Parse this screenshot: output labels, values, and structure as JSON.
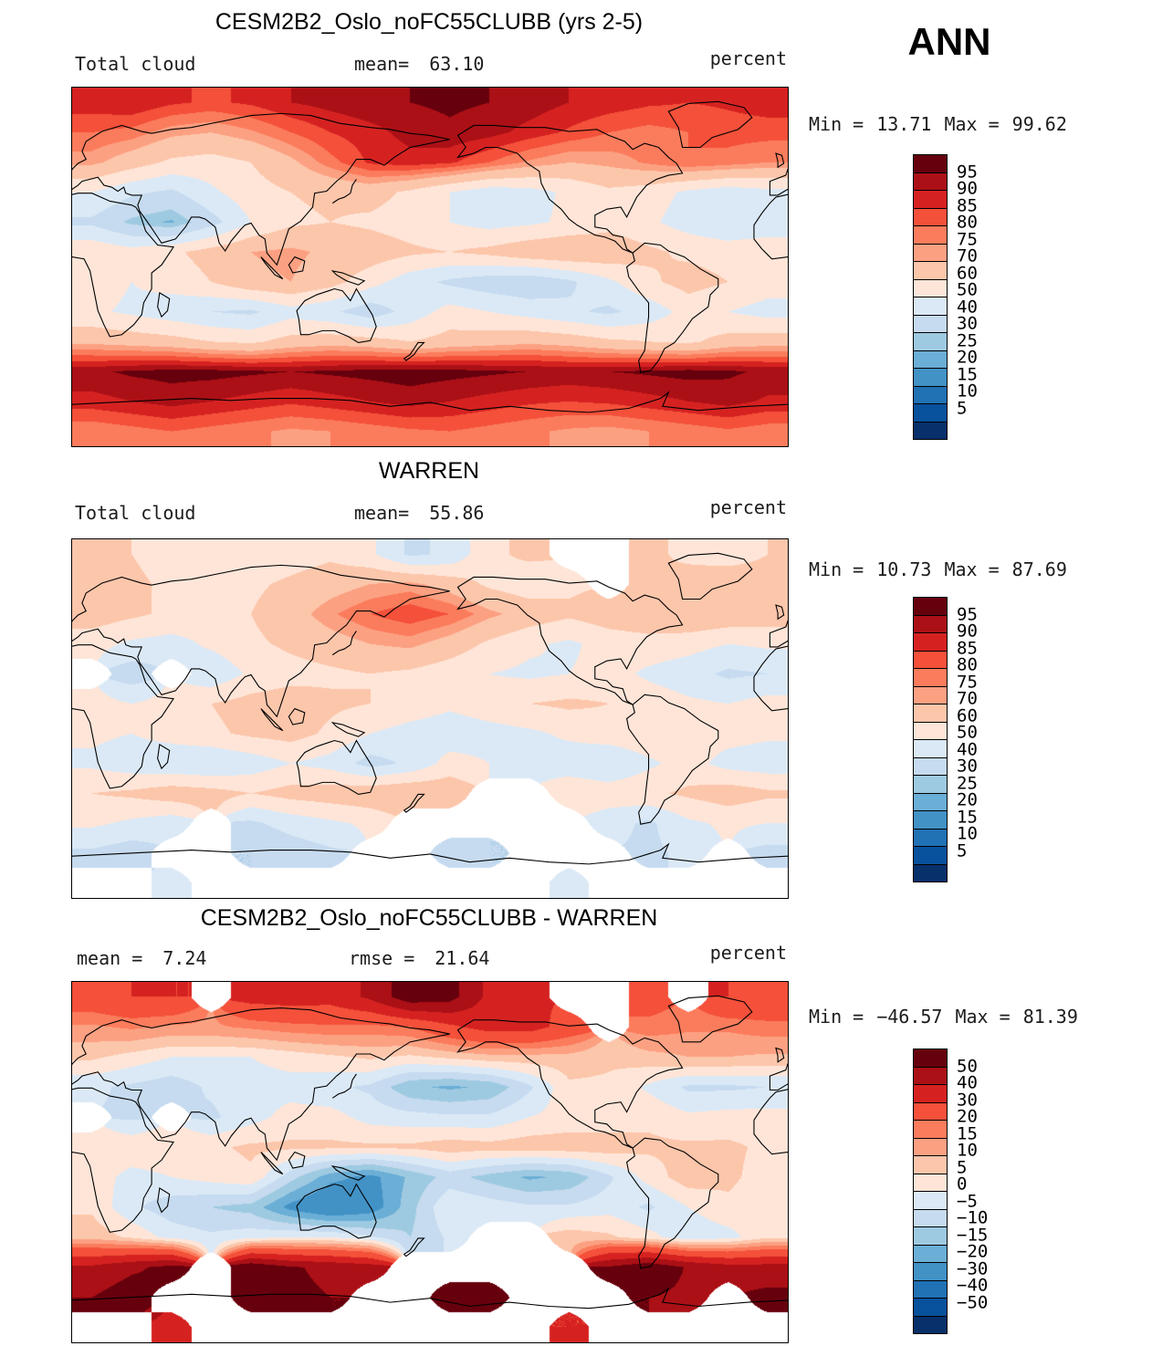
{
  "season_label": "ANN",
  "chart_data": [
    {
      "type": "heatmap",
      "title": "CESM2B2_Oslo_noFC55CLUBB (yrs 2-5)",
      "field_label": "Total cloud",
      "mean_label": "mean=",
      "mean_value": "63.10",
      "units": "percent",
      "min_label": "Min =",
      "min_value": "13.71",
      "max_label": "Max =",
      "max_value": "99.62",
      "stats": {
        "mean": 63.1,
        "min": 13.71,
        "max": 99.62
      },
      "levels": [
        5,
        10,
        15,
        20,
        25,
        30,
        40,
        50,
        60,
        70,
        75,
        80,
        85,
        90,
        95
      ],
      "colorbar_labels": [
        "95",
        "90",
        "85",
        "80",
        "75",
        "70",
        "60",
        "50",
        "40",
        "30",
        "25",
        "20",
        "15",
        "10",
        "5"
      ],
      "palette": [
        "#08306b",
        "#08519c",
        "#2171b5",
        "#4292c6",
        "#6baed6",
        "#9ecae1",
        "#c6dbef",
        "#dbe9f6",
        "#fee5d8",
        "#fcc6ab",
        "#fca082",
        "#fb7c5c",
        "#f4503a",
        "#d52221",
        "#ab1016",
        "#67000d"
      ],
      "grid": {
        "cols": 18,
        "rows": 12,
        "lon_range": [
          0,
          360
        ],
        "lat_range": [
          90,
          -90
        ],
        "values": [
          [
            88,
            90,
            86,
            84,
            86,
            90,
            92,
            94,
            95,
            96,
            95,
            93,
            90,
            88,
            86,
            85,
            86,
            88
          ],
          [
            80,
            78,
            72,
            70,
            74,
            80,
            85,
            88,
            92,
            94,
            92,
            88,
            84,
            80,
            78,
            80,
            82,
            82
          ],
          [
            72,
            65,
            58,
            56,
            60,
            68,
            78,
            86,
            88,
            86,
            80,
            74,
            70,
            72,
            76,
            80,
            78,
            75
          ],
          [
            50,
            42,
            38,
            48,
            56,
            60,
            62,
            64,
            58,
            50,
            44,
            46,
            52,
            58,
            55,
            48,
            44,
            47
          ],
          [
            38,
            28,
            24,
            36,
            50,
            58,
            60,
            58,
            55,
            50,
            46,
            48,
            52,
            56,
            52,
            45,
            40,
            42
          ],
          [
            58,
            54,
            58,
            64,
            70,
            72,
            68,
            66,
            62,
            60,
            63,
            68,
            70,
            68,
            62,
            58,
            56,
            58
          ],
          [
            55,
            50,
            54,
            60,
            68,
            70,
            64,
            54,
            44,
            38,
            34,
            32,
            38,
            48,
            58,
            64,
            60,
            55
          ],
          [
            52,
            48,
            44,
            40,
            38,
            46,
            42,
            34,
            44,
            54,
            50,
            46,
            42,
            38,
            44,
            54,
            50,
            46
          ],
          [
            68,
            66,
            64,
            60,
            58,
            64,
            66,
            64,
            60,
            64,
            66,
            68,
            66,
            62,
            60,
            58,
            64,
            66
          ],
          [
            94,
            96,
            97,
            97,
            96,
            95,
            96,
            97,
            98,
            97,
            96,
            95,
            94,
            95,
            96,
            97,
            96,
            94
          ],
          [
            88,
            90,
            92,
            90,
            88,
            86,
            88,
            90,
            92,
            90,
            88,
            86,
            85,
            86,
            88,
            90,
            92,
            89
          ],
          [
            76,
            78,
            80,
            78,
            76,
            74,
            75,
            77,
            79,
            80,
            78,
            76,
            74,
            73,
            75,
            77,
            79,
            77
          ]
        ]
      }
    },
    {
      "type": "heatmap",
      "title": "WARREN",
      "field_label": "Total cloud",
      "mean_label": "mean=",
      "mean_value": "55.86",
      "units": "percent",
      "min_label": "Min =",
      "min_value": "10.73",
      "max_label": "Max =",
      "max_value": "87.69",
      "stats": {
        "mean": 55.86,
        "min": 10.73,
        "max": 87.69
      },
      "levels": [
        5,
        10,
        15,
        20,
        25,
        30,
        40,
        50,
        60,
        70,
        75,
        80,
        85,
        90,
        95
      ],
      "colorbar_labels": [
        "95",
        "90",
        "85",
        "80",
        "75",
        "70",
        "60",
        "50",
        "40",
        "30",
        "25",
        "20",
        "15",
        "10",
        "5"
      ],
      "palette": [
        "#08306b",
        "#08519c",
        "#2171b5",
        "#4292c6",
        "#6baed6",
        "#9ecae1",
        "#c6dbef",
        "#dbe9f6",
        "#fee5d8",
        "#fcc6ab",
        "#fca082",
        "#fb7c5c",
        "#f4503a",
        "#d52221",
        "#ab1016",
        "#67000d"
      ],
      "grid": {
        "cols": 18,
        "rows": 12,
        "lon_range": [
          0,
          360
        ],
        "lat_range": [
          90,
          -90
        ],
        "values": [
          [
            62,
            60,
            56,
            54,
            52,
            55,
            58,
            52,
            38,
            42,
            58,
            62,
            null,
            null,
            62,
            58,
            56,
            60
          ],
          [
            66,
            62,
            58,
            56,
            58,
            62,
            66,
            70,
            72,
            66,
            58,
            54,
            58,
            null,
            60,
            64,
            66,
            64
          ],
          [
            66,
            62,
            58,
            56,
            60,
            66,
            74,
            80,
            84,
            80,
            72,
            66,
            62,
            66,
            68,
            70,
            68,
            66
          ],
          [
            54,
            48,
            46,
            52,
            58,
            62,
            66,
            70,
            72,
            66,
            58,
            52,
            48,
            54,
            56,
            54,
            50,
            52
          ],
          [
            null,
            34,
            null,
            42,
            52,
            56,
            58,
            60,
            58,
            54,
            50,
            48,
            50,
            54,
            48,
            44,
            38,
            40
          ],
          [
            54,
            50,
            54,
            60,
            64,
            66,
            62,
            60,
            56,
            52,
            56,
            60,
            62,
            60,
            56,
            52,
            50,
            54
          ],
          [
            52,
            50,
            54,
            58,
            62,
            64,
            58,
            50,
            46,
            44,
            46,
            48,
            52,
            56,
            58,
            56,
            54,
            52
          ],
          [
            48,
            44,
            42,
            40,
            44,
            50,
            46,
            36,
            42,
            54,
            50,
            46,
            44,
            40,
            48,
            54,
            46,
            44
          ],
          [
            60,
            62,
            66,
            64,
            60,
            64,
            66,
            68,
            70,
            68,
            null,
            null,
            58,
            56,
            58,
            62,
            66,
            62
          ],
          [
            52,
            48,
            44,
            null,
            38,
            44,
            48,
            52,
            null,
            null,
            null,
            null,
            null,
            44,
            38,
            48,
            52,
            50
          ],
          [
            38,
            34,
            null,
            null,
            30,
            34,
            38,
            null,
            null,
            34,
            30,
            null,
            null,
            null,
            38,
            42,
            null,
            36
          ],
          [
            null,
            null,
            44,
            null,
            null,
            null,
            null,
            null,
            null,
            null,
            null,
            null,
            44,
            null,
            null,
            null,
            null,
            null
          ]
        ]
      }
    },
    {
      "type": "heatmap",
      "title": "CESM2B2_Oslo_noFC55CLUBB - WARREN",
      "mean_label": "mean =",
      "mean_value": "7.24",
      "rmse_label": "rmse =",
      "rmse_value": "21.64",
      "units": "percent",
      "min_label": "Min =",
      "min_value": "−46.57",
      "max_label": "Max =",
      "max_value": "81.39",
      "stats": {
        "mean": 7.24,
        "rmse": 21.64,
        "min": -46.57,
        "max": 81.39
      },
      "levels": [
        -50,
        -40,
        -30,
        -20,
        -15,
        -10,
        -5,
        0,
        5,
        10,
        15,
        20,
        30,
        40,
        50
      ],
      "colorbar_labels": [
        "50",
        "40",
        "30",
        "20",
        "15",
        "10",
        "5",
        "0",
        "−5",
        "−10",
        "−15",
        "−20",
        "−30",
        "−40",
        "−50"
      ],
      "palette": [
        "#08306b",
        "#08519c",
        "#2171b5",
        "#4292c6",
        "#6baed6",
        "#9ecae1",
        "#c6dbef",
        "#dbe9f6",
        "#fee5d8",
        "#fcc6ab",
        "#fca082",
        "#fb7c5c",
        "#f4503a",
        "#d52221",
        "#ab1016",
        "#67000d"
      ],
      "grid": {
        "cols": 18,
        "rows": 12,
        "lon_range": [
          0,
          360
        ],
        "lat_range": [
          90,
          -90
        ],
        "values": [
          [
            26,
            30,
            30,
            null,
            34,
            35,
            34,
            42,
            57,
            54,
            37,
            31,
            null,
            null,
            24,
            null,
            30,
            28
          ],
          [
            14,
            16,
            14,
            14,
            16,
            18,
            19,
            18,
            20,
            28,
            34,
            34,
            26,
            null,
            18,
            16,
            16,
            18
          ],
          [
            6,
            3,
            0,
            0,
            0,
            2,
            4,
            6,
            4,
            6,
            8,
            8,
            8,
            6,
            8,
            10,
            10,
            9
          ],
          [
            -4,
            -6,
            -8,
            -4,
            -2,
            -2,
            -4,
            -6,
            -14,
            -16,
            -14,
            -6,
            4,
            4,
            -1,
            -6,
            -6,
            -5
          ],
          [
            null,
            -6,
            null,
            -6,
            -2,
            2,
            2,
            -2,
            -3,
            -4,
            -4,
            0,
            2,
            2,
            4,
            1,
            2,
            2
          ],
          [
            4,
            4,
            4,
            4,
            6,
            6,
            6,
            6,
            6,
            8,
            7,
            8,
            8,
            8,
            6,
            6,
            6,
            4
          ],
          [
            3,
            -2,
            0,
            2,
            4,
            -8,
            -18,
            -22,
            -14,
            -8,
            -12,
            -16,
            -14,
            -6,
            2,
            8,
            6,
            3
          ],
          [
            4,
            -4,
            -8,
            -10,
            -12,
            -22,
            -28,
            -24,
            -12,
            0,
            -2,
            -4,
            -4,
            -2,
            -6,
            0,
            4,
            2
          ],
          [
            8,
            4,
            -2,
            -4,
            -2,
            0,
            0,
            -4,
            -10,
            -4,
            null,
            null,
            8,
            6,
            2,
            -4,
            -2,
            4
          ],
          [
            42,
            48,
            53,
            null,
            58,
            51,
            48,
            45,
            null,
            null,
            null,
            null,
            null,
            51,
            58,
            49,
            44,
            44
          ],
          [
            50,
            56,
            null,
            null,
            58,
            52,
            50,
            null,
            null,
            56,
            58,
            null,
            null,
            null,
            50,
            48,
            null,
            53
          ],
          [
            null,
            null,
            36,
            null,
            null,
            null,
            null,
            null,
            null,
            null,
            null,
            null,
            30,
            null,
            null,
            null,
            null,
            null
          ]
        ]
      }
    }
  ]
}
